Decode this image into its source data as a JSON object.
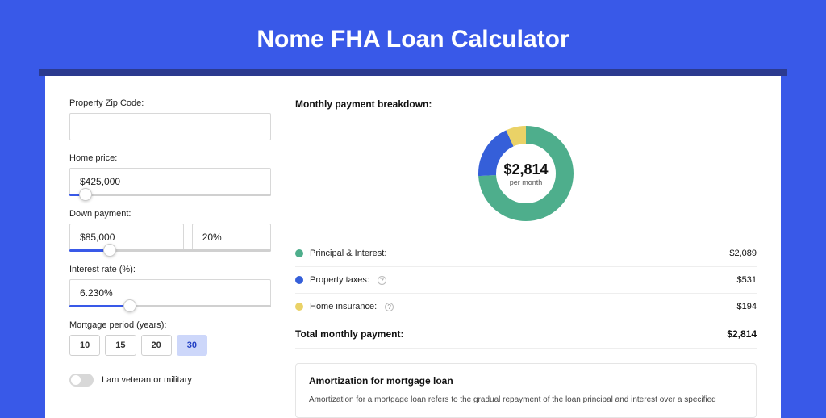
{
  "page": {
    "title": "Nome FHA Loan Calculator",
    "background_color": "#3959e8",
    "card_background": "#ffffff",
    "shadow_bar_color": "#2b3a8f"
  },
  "form": {
    "zip": {
      "label": "Property Zip Code:",
      "value": ""
    },
    "home_price": {
      "label": "Home price:",
      "value": "$425,000",
      "slider_fill_pct": 8,
      "thumb_pct": 8
    },
    "down_payment": {
      "label": "Down payment:",
      "amount": "$85,000",
      "percent": "20%",
      "slider_fill_pct": 20,
      "thumb_pct": 20
    },
    "interest_rate": {
      "label": "Interest rate (%):",
      "value": "6.230%",
      "slider_fill_pct": 30,
      "thumb_pct": 30
    },
    "mortgage_period": {
      "label": "Mortgage period (years):",
      "options": [
        "10",
        "15",
        "20",
        "30"
      ],
      "selected": "30"
    },
    "veteran_toggle": {
      "label": "I am veteran or military",
      "checked": false
    }
  },
  "breakdown": {
    "title": "Monthly payment breakdown:",
    "center_amount": "$2,814",
    "center_sub": "per month",
    "donut": {
      "size": 130,
      "stroke_width": 22,
      "segments": [
        {
          "key": "pi",
          "pct": 74,
          "color": "#4eae8c"
        },
        {
          "key": "tax",
          "pct": 19,
          "color": "#355fd9"
        },
        {
          "key": "ins",
          "pct": 7,
          "color": "#ead267"
        }
      ]
    },
    "items": [
      {
        "label": "Principal & Interest:",
        "value": "$2,089",
        "color": "#4eae8c",
        "info": false
      },
      {
        "label": "Property taxes:",
        "value": "$531",
        "color": "#355fd9",
        "info": true
      },
      {
        "label": "Home insurance:",
        "value": "$194",
        "color": "#ead267",
        "info": true
      }
    ],
    "total": {
      "label": "Total monthly payment:",
      "value": "$2,814"
    }
  },
  "amortization": {
    "title": "Amortization for mortgage loan",
    "text": "Amortization for a mortgage loan refers to the gradual repayment of the loan principal and interest over a specified"
  }
}
